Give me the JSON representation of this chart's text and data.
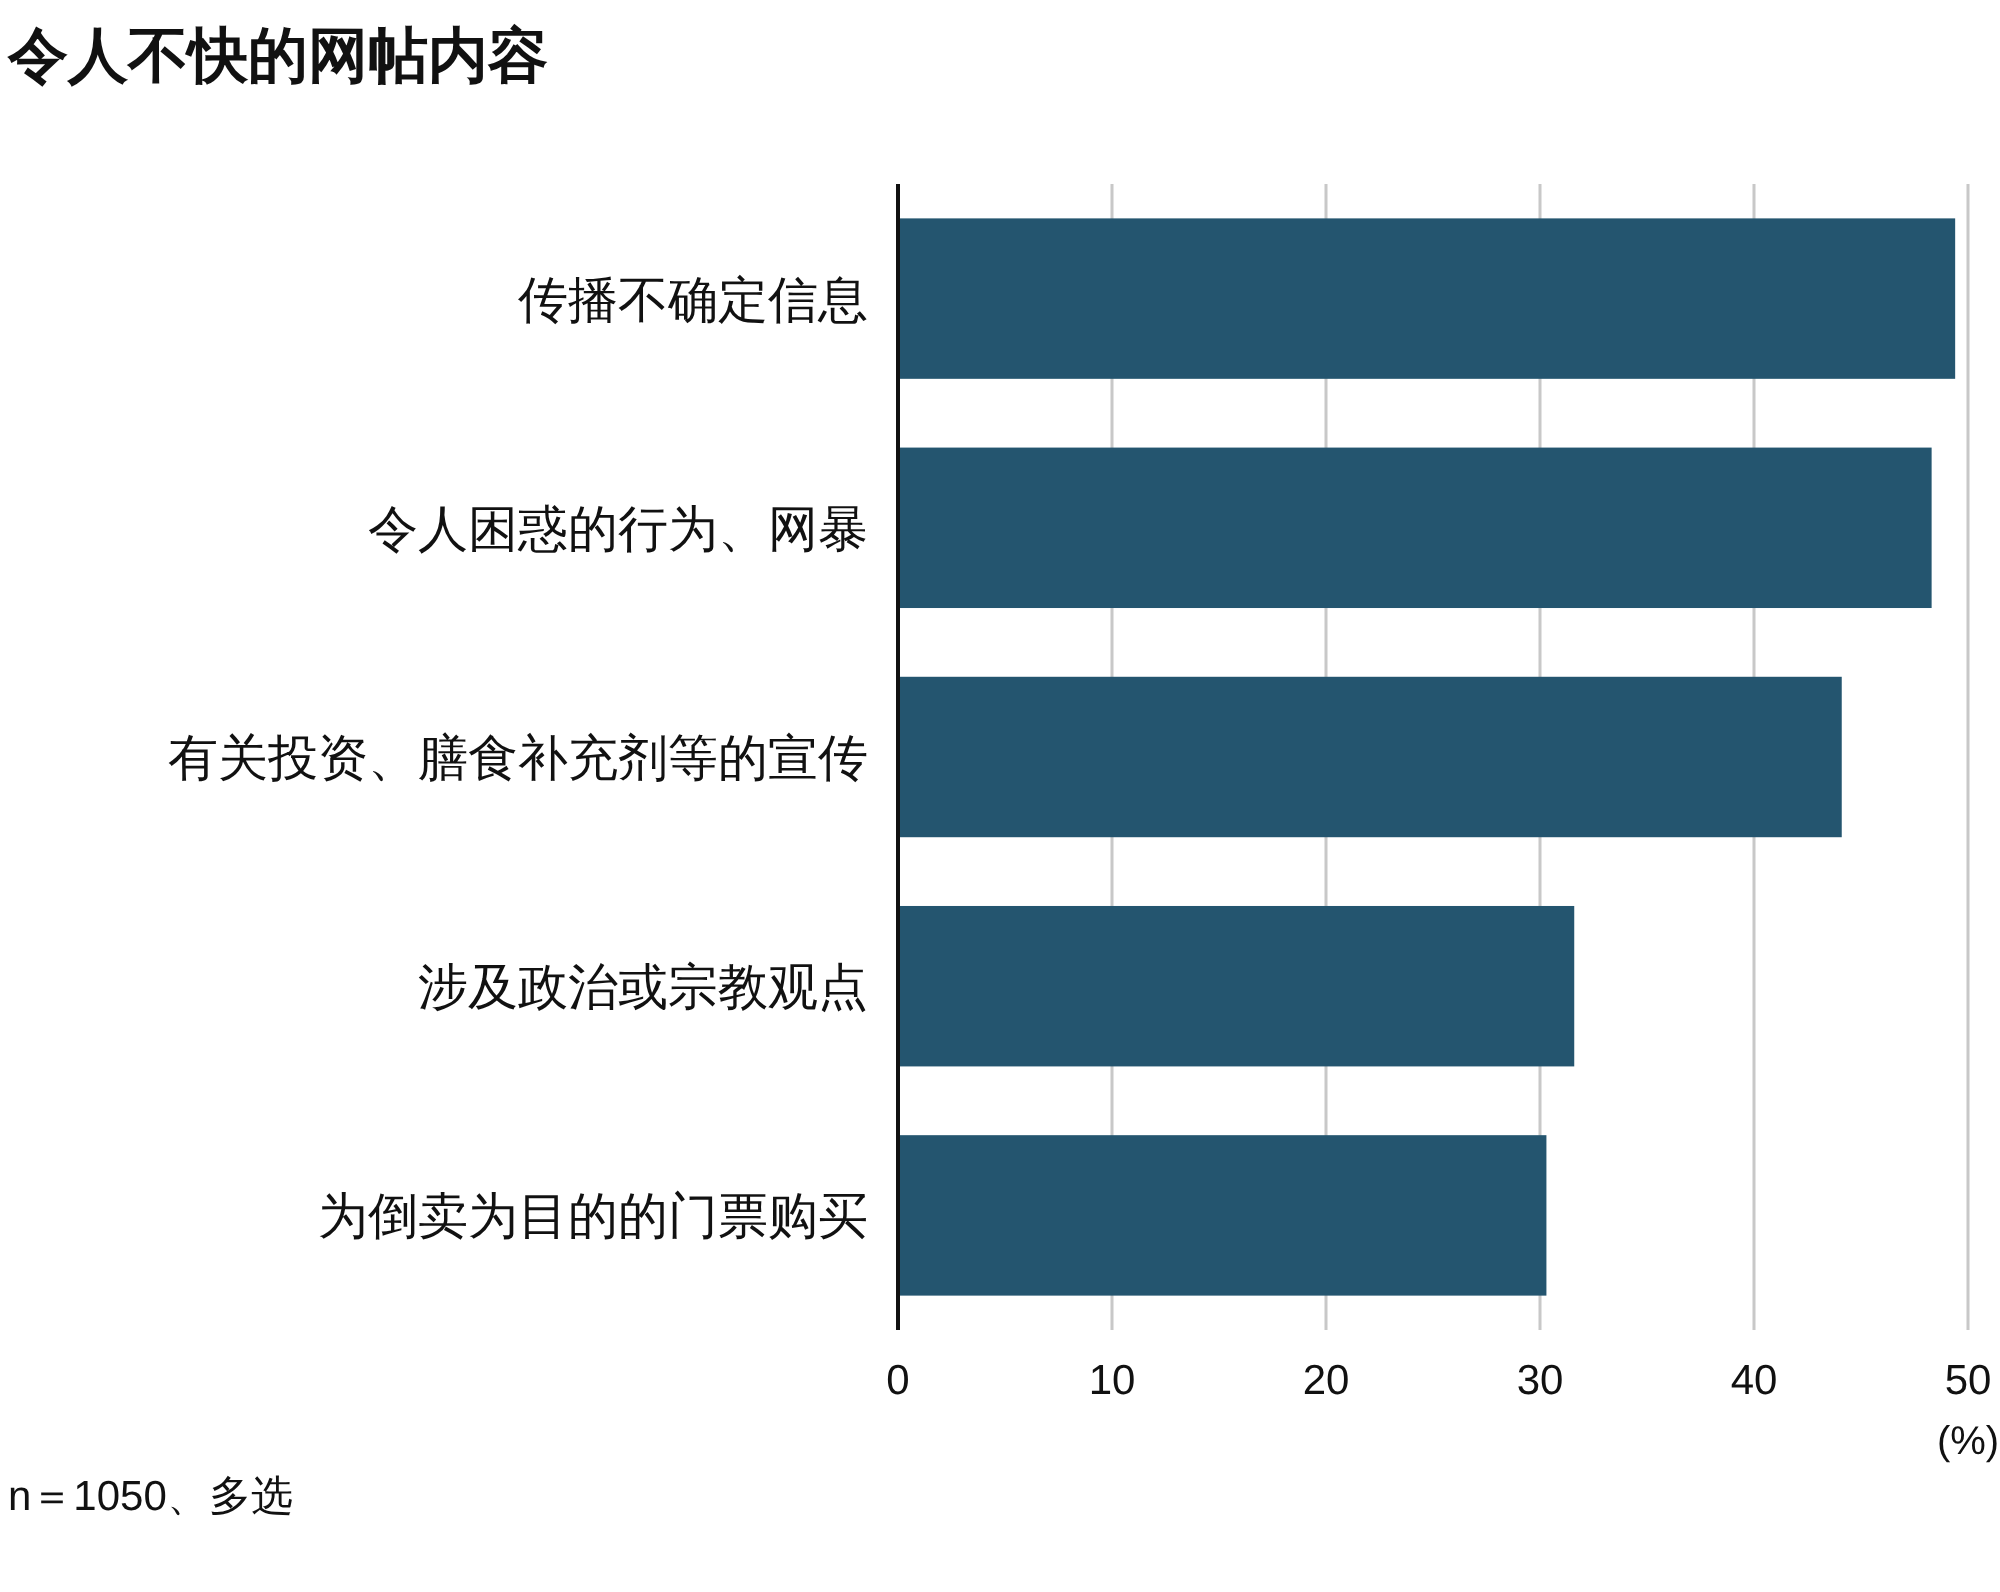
{
  "chart_data": {
    "type": "bar",
    "orientation": "horizontal",
    "title": "令人不快的网帖内容",
    "categories": [
      "传播不确定信息",
      "令人困惑的行为、网暴",
      "有关投资、膳食补充剂等的宣传",
      "涉及政治或宗教观点",
      "为倒卖为目的的门票购买"
    ],
    "values": [
      49.4,
      48.3,
      44.1,
      31.6,
      30.3
    ],
    "color": "#24556f",
    "xlim": [
      0,
      50
    ],
    "xticks": [
      0,
      10,
      20,
      30,
      40,
      50
    ],
    "xlabel": "(%)",
    "grid": "x",
    "annotations": [
      "n＝1050、多选"
    ]
  }
}
